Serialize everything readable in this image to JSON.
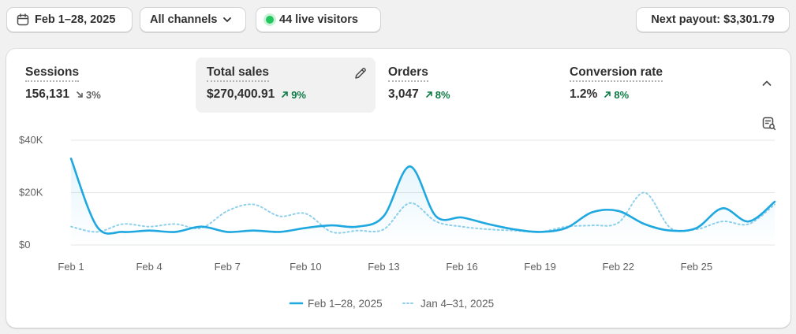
{
  "toolbar": {
    "date_range": "Feb 1–28, 2025",
    "channels": "All channels",
    "live_visitors": "44 live visitors",
    "payout": "Next payout: $3,301.79"
  },
  "metrics": [
    {
      "label": "Sessions",
      "value": "156,131",
      "delta": "3%",
      "direction": "down",
      "active": false
    },
    {
      "label": "Total sales",
      "value": "$270,400.91",
      "delta": "9%",
      "direction": "up",
      "active": true
    },
    {
      "label": "Orders",
      "value": "3,047",
      "delta": "8%",
      "direction": "up",
      "active": false
    },
    {
      "label": "Conversion rate",
      "value": "1.2%",
      "delta": "8%",
      "direction": "up",
      "active": false
    }
  ],
  "colors": {
    "series_primary": "#1fa8e0",
    "series_comparison": "#8fd0ec",
    "grid": "#e6e6e6",
    "positive": "#0c7a43",
    "live": "#22c55e"
  },
  "chart_data": {
    "type": "line",
    "title": "",
    "xlabel": "",
    "ylabel": "",
    "ylim": [
      0,
      40000
    ],
    "yticks": [
      {
        "value": 0,
        "label": "$0"
      },
      {
        "value": 20000,
        "label": "$20K"
      },
      {
        "value": 40000,
        "label": "$40K"
      }
    ],
    "xticks": [
      {
        "index": 0,
        "label": "Feb 1"
      },
      {
        "index": 3,
        "label": "Feb 4"
      },
      {
        "index": 6,
        "label": "Feb 7"
      },
      {
        "index": 9,
        "label": "Feb 10"
      },
      {
        "index": 12,
        "label": "Feb 13"
      },
      {
        "index": 15,
        "label": "Feb 16"
      },
      {
        "index": 18,
        "label": "Feb 19"
      },
      {
        "index": 21,
        "label": "Feb 22"
      },
      {
        "index": 24,
        "label": "Feb 25"
      }
    ],
    "grid": true,
    "legend_position": "bottom-center",
    "series": [
      {
        "name": "Feb 1–28, 2025",
        "style": "solid",
        "values": [
          33000,
          7000,
          5000,
          5500,
          5000,
          7000,
          5000,
          5500,
          5000,
          6500,
          7500,
          7000,
          11000,
          30000,
          11000,
          10500,
          8000,
          6000,
          5000,
          6500,
          12500,
          13000,
          8000,
          5500,
          6500,
          14000,
          9000,
          16500
        ]
      },
      {
        "name": "Jan 4–31, 2025",
        "style": "dotted",
        "values": [
          7000,
          5000,
          8000,
          7000,
          8000,
          6500,
          13000,
          15500,
          11000,
          12000,
          5000,
          5500,
          6000,
          16000,
          9000,
          7000,
          6000,
          5500,
          5000,
          7000,
          7500,
          8500,
          20000,
          6500,
          6000,
          9000,
          8000,
          15500
        ]
      }
    ]
  }
}
